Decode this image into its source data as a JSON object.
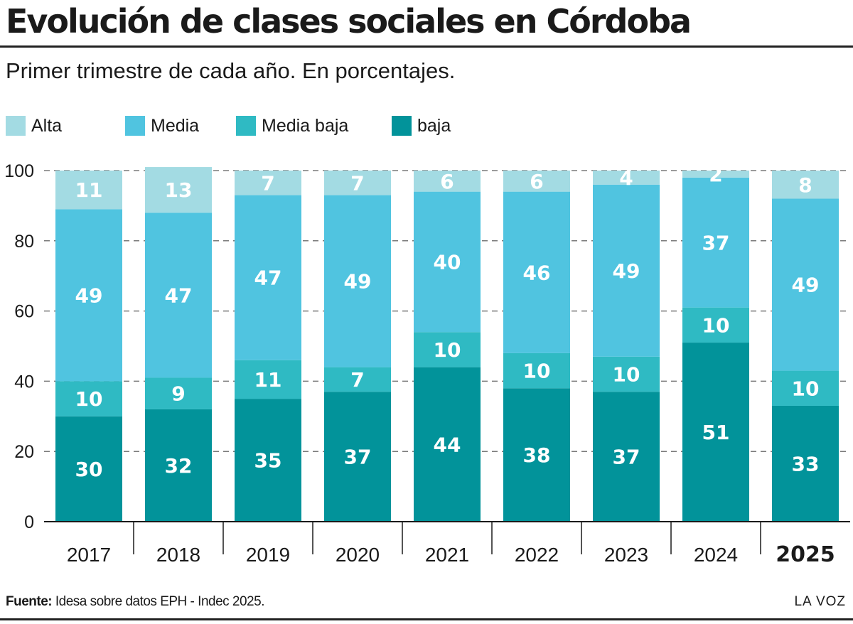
{
  "header": {
    "title": "Evolución de clases sociales en Córdoba",
    "subtitle": "Primer trimestre de cada año. En porcentajes."
  },
  "legend": [
    {
      "label": "Alta",
      "color": "#a3dbe3"
    },
    {
      "label": "Media",
      "color": "#50c4e0"
    },
    {
      "label": "Media baja",
      "color": "#2fbac3"
    },
    {
      "label": "baja",
      "color": "#02939a"
    }
  ],
  "chart_data": {
    "type": "bar",
    "stacked": true,
    "categories": [
      "2017",
      "2018",
      "2019",
      "2020",
      "2021",
      "2022",
      "2023",
      "2024",
      "2025"
    ],
    "bold_last_category": true,
    "series": [
      {
        "name": "baja",
        "color": "#02939a",
        "values": [
          30,
          32,
          35,
          37,
          44,
          38,
          37,
          51,
          33
        ]
      },
      {
        "name": "Media baja",
        "color": "#2fbac3",
        "values": [
          10,
          9,
          11,
          7,
          10,
          10,
          10,
          10,
          10
        ]
      },
      {
        "name": "Media",
        "color": "#50c4e0",
        "values": [
          49,
          47,
          47,
          49,
          40,
          46,
          49,
          37,
          49
        ]
      },
      {
        "name": "Alta",
        "color": "#a3dbe3",
        "values": [
          11,
          13,
          7,
          7,
          6,
          6,
          4,
          2,
          8
        ]
      }
    ],
    "ylim": [
      0,
      100
    ],
    "yticks": [
      0,
      20,
      40,
      60,
      80,
      100
    ],
    "grid": true,
    "legend_position": "top"
  },
  "footer": {
    "source_label": "Fuente:",
    "source_text": " Idesa sobre datos EPH - Indec 2025.",
    "brand": "LA VOZ"
  }
}
